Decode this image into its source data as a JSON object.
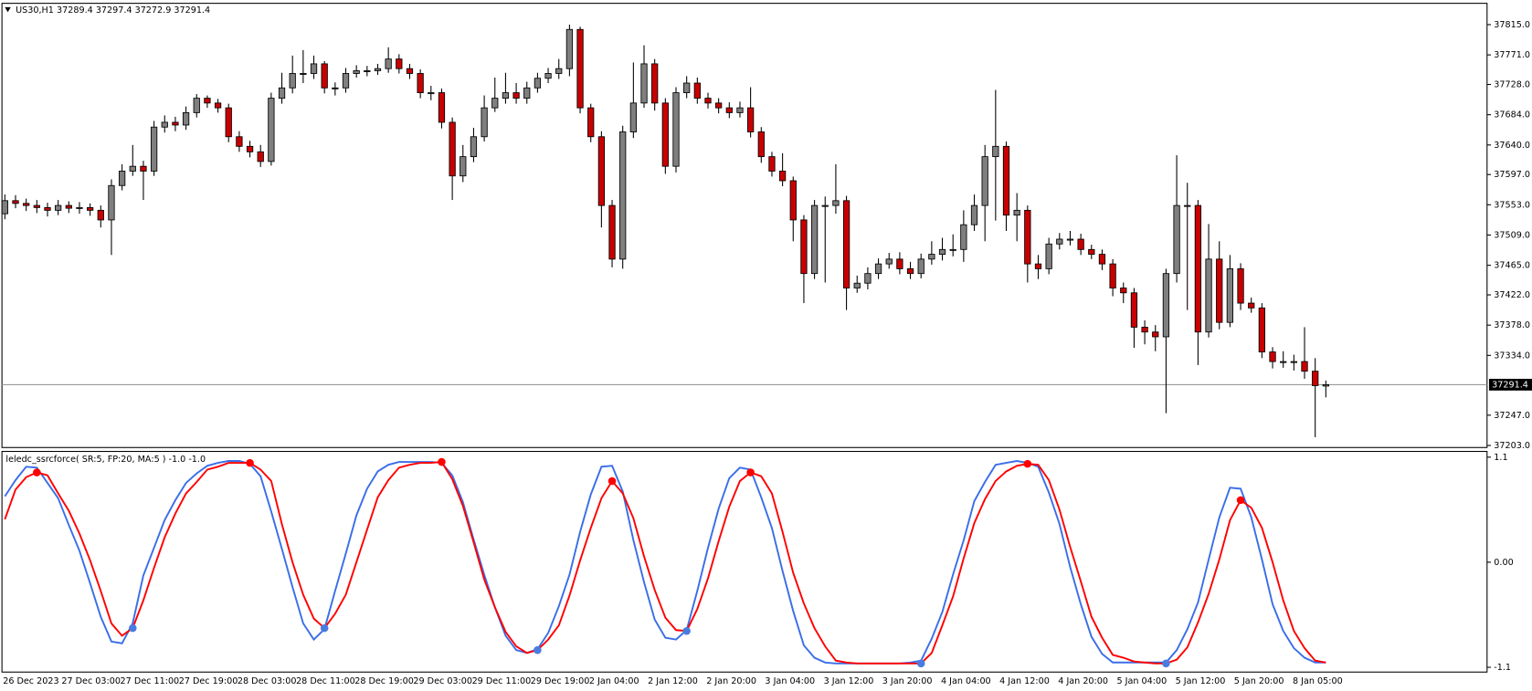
{
  "chart_data": [
    {
      "type": "candlestick",
      "title": "US30,H1",
      "readout": [
        37289.4,
        37297.4,
        37272.9,
        37291.4
      ],
      "x_labels": [
        "26 Dec 2023",
        "27 Dec 03:00",
        "27 Dec 11:00",
        "27 Dec 19:00",
        "28 Dec 03:00",
        "28 Dec 11:00",
        "28 Dec 19:00",
        "29 Dec 03:00",
        "29 Dec 11:00",
        "29 Dec 19:00",
        "2 Jan 04:00",
        "2 Jan 12:00",
        "2 Jan 20:00",
        "3 Jan 04:00",
        "3 Jan 12:00",
        "3 Jan 20:00",
        "4 Jan 04:00",
        "4 Jan 12:00",
        "4 Jan 20:00",
        "5 Jan 04:00",
        "5 Jan 12:00",
        "5 Jan 20:00",
        "8 Jan 05:00"
      ],
      "open": [
        37540,
        37559,
        37555,
        37552,
        37549,
        37545,
        37552,
        37548,
        37549,
        37545,
        37531,
        37581,
        37602,
        37609,
        37602,
        37666,
        37673,
        37669,
        37687,
        37708,
        37701,
        37694,
        37652,
        37638,
        37630,
        37616,
        37708,
        37723,
        37744,
        37744,
        37758,
        37723,
        37723,
        37744,
        37748,
        37748,
        37751,
        37765,
        37751,
        37744,
        37716,
        37716,
        37673,
        37595,
        37623,
        37652,
        37694,
        37708,
        37716,
        37708,
        37723,
        37737,
        37744,
        37751,
        37808,
        37694,
        37652,
        37552,
        37474,
        37659,
        37701,
        37758,
        37701,
        37609,
        37716,
        37730,
        37708,
        37701,
        37694,
        37687,
        37694,
        37659,
        37623,
        37602,
        37588,
        37531,
        37453,
        37552,
        37552,
        37559,
        37432,
        37439,
        37453,
        37467,
        37474,
        37460,
        37453,
        37474,
        37481,
        37488,
        37488,
        37524,
        37552,
        37623,
        37638,
        37538,
        37545,
        37467,
        37460,
        37496,
        37503,
        37503,
        37488,
        37481,
        37467,
        37432,
        37425,
        37375,
        37368,
        37361,
        37453,
        37552,
        37552,
        37368,
        37474,
        37382,
        37460,
        37410,
        37403,
        37339,
        37325,
        37325,
        37325,
        37311,
        37289.4
      ],
      "high": [
        37568,
        37567,
        37562,
        37560,
        37556,
        37560,
        37558,
        37557,
        37555,
        37552,
        37590,
        37612,
        37640,
        37617,
        37675,
        37683,
        37681,
        37696,
        37714,
        37712,
        37707,
        37700,
        37660,
        37646,
        37640,
        37716,
        37745,
        37770,
        37778,
        37770,
        37762,
        37731,
        37752,
        37756,
        37755,
        37758,
        37782,
        37772,
        37758,
        37750,
        37726,
        37722,
        37680,
        37640,
        37665,
        37712,
        37738,
        37745,
        37730,
        37732,
        37745,
        37752,
        37765,
        37815,
        37812,
        37700,
        37660,
        37560,
        37668,
        37760,
        37785,
        37765,
        37708,
        37724,
        37740,
        37738,
        37716,
        37708,
        37702,
        37703,
        37724,
        37666,
        37630,
        37628,
        37594,
        37538,
        37560,
        37565,
        37612,
        37566,
        37450,
        37462,
        37475,
        37483,
        37484,
        37470,
        37482,
        37500,
        37505,
        37510,
        37545,
        37568,
        37640,
        37720,
        37645,
        37570,
        37552,
        37480,
        37505,
        37512,
        37515,
        37511,
        37495,
        37488,
        37474,
        37440,
        37432,
        37385,
        37378,
        37460,
        37625,
        37585,
        37560,
        37525,
        37500,
        37480,
        37468,
        37418,
        37410,
        37346,
        37340,
        37335,
        37375,
        37330,
        37297.4
      ],
      "low": [
        37532,
        37548,
        37544,
        37541,
        37536,
        37538,
        37541,
        37540,
        37537,
        37520,
        37480,
        37574,
        37595,
        37560,
        37595,
        37658,
        37660,
        37662,
        37680,
        37694,
        37687,
        37644,
        37630,
        37622,
        37608,
        37610,
        37700,
        37715,
        37730,
        37736,
        37715,
        37712,
        37716,
        37738,
        37740,
        37742,
        37745,
        37744,
        37736,
        37708,
        37705,
        37664,
        37560,
        37586,
        37615,
        37645,
        37688,
        37700,
        37700,
        37700,
        37716,
        37730,
        37736,
        37740,
        37686,
        37644,
        37520,
        37462,
        37460,
        37650,
        37694,
        37690,
        37598,
        37600,
        37708,
        37700,
        37693,
        37686,
        37679,
        37680,
        37651,
        37614,
        37594,
        37580,
        37500,
        37410,
        37445,
        37440,
        37540,
        37400,
        37425,
        37430,
        37445,
        37460,
        37452,
        37445,
        37446,
        37466,
        37472,
        37478,
        37470,
        37515,
        37500,
        37530,
        37515,
        37500,
        37440,
        37445,
        37452,
        37488,
        37494,
        37480,
        37474,
        37458,
        37420,
        37410,
        37345,
        37350,
        37340,
        37250,
        37440,
        37400,
        37320,
        37360,
        37372,
        37375,
        37400,
        37396,
        37330,
        37315,
        37316,
        37312,
        37300,
        37215,
        37272.9
      ],
      "close": [
        37559,
        37555,
        37552,
        37549,
        37545,
        37552,
        37548,
        37549,
        37545,
        37531,
        37581,
        37602,
        37609,
        37602,
        37666,
        37673,
        37669,
        37687,
        37708,
        37701,
        37694,
        37652,
        37638,
        37630,
        37616,
        37708,
        37723,
        37744,
        37744,
        37758,
        37723,
        37723,
        37744,
        37748,
        37748,
        37751,
        37765,
        37751,
        37744,
        37716,
        37716,
        37673,
        37595,
        37623,
        37652,
        37694,
        37708,
        37716,
        37708,
        37723,
        37737,
        37744,
        37751,
        37808,
        37694,
        37652,
        37552,
        37474,
        37659,
        37701,
        37758,
        37701,
        37609,
        37716,
        37730,
        37708,
        37701,
        37694,
        37687,
        37694,
        37659,
        37623,
        37602,
        37588,
        37531,
        37453,
        37552,
        37552,
        37559,
        37432,
        37439,
        37453,
        37467,
        37474,
        37460,
        37453,
        37474,
        37481,
        37488,
        37488,
        37524,
        37552,
        37623,
        37638,
        37538,
        37545,
        37467,
        37460,
        37496,
        37503,
        37503,
        37488,
        37481,
        37467,
        37432,
        37425,
        37375,
        37368,
        37361,
        37453,
        37552,
        37552,
        37368,
        37474,
        37382,
        37460,
        37410,
        37403,
        37339,
        37325,
        37325,
        37325,
        37311,
        37290,
        37291.4
      ],
      "up_color": "#7f7f7f",
      "down_color": "#c80000",
      "ylim": [
        37200,
        37846
      ],
      "yticks": [
        {
          "value": 37815,
          "label": "37815.0"
        },
        {
          "value": 37771,
          "label": "37771.0"
        },
        {
          "value": 37728,
          "label": "37728.0"
        },
        {
          "value": 37684,
          "label": "37684.0"
        },
        {
          "value": 37640,
          "label": "37640.0"
        },
        {
          "value": 37597,
          "label": "37597.0"
        },
        {
          "value": 37553,
          "label": "37553.0"
        },
        {
          "value": 37509,
          "label": "37509.0"
        },
        {
          "value": 37465,
          "label": "37465.0"
        },
        {
          "value": 37422,
          "label": "37422.0"
        },
        {
          "value": 37378,
          "label": "37378.0"
        },
        {
          "value": 37334,
          "label": "37334.0"
        },
        {
          "value": 37247,
          "label": "37247.0"
        },
        {
          "value": 37203,
          "label": "37203.0"
        }
      ],
      "last_price_line": true
    },
    {
      "type": "line",
      "title": "leledc_ssrcforce( SR:5, FP:20, MA:5 ) -1.0 -1.0",
      "series": [
        {
          "color": "#3a6ee8",
          "values": [
            0.69,
            0.86,
            1.0,
            0.99,
            0.83,
            0.67,
            0.39,
            0.12,
            -0.22,
            -0.57,
            -0.83,
            -0.85,
            -0.64,
            -0.14,
            0.15,
            0.44,
            0.65,
            0.83,
            0.93,
            1.01,
            1.04,
            1.06,
            1.06,
            1.03,
            0.9,
            0.53,
            0.14,
            -0.26,
            -0.64,
            -0.81,
            -0.7,
            -0.3,
            0.09,
            0.49,
            0.77,
            0.95,
            1.02,
            1.05,
            1.05,
            1.05,
            1.05,
            1.04,
            0.91,
            0.63,
            0.24,
            -0.13,
            -0.47,
            -0.77,
            -0.92,
            -0.95,
            -0.91,
            -0.74,
            -0.46,
            -0.13,
            0.32,
            0.71,
            1.0,
            1.01,
            0.74,
            0.23,
            -0.21,
            -0.6,
            -0.79,
            -0.81,
            -0.71,
            -0.3,
            0.15,
            0.56,
            0.88,
            0.99,
            0.97,
            0.68,
            0.36,
            -0.09,
            -0.51,
            -0.87,
            -1.0,
            -1.05,
            -1.06,
            -1.06,
            -1.06,
            -1.06,
            -1.06,
            -1.06,
            -1.06,
            -1.05,
            -1.03,
            -0.8,
            -0.52,
            -0.13,
            0.23,
            0.64,
            0.84,
            1.02,
            1.04,
            1.06,
            1.04,
            1.0,
            0.73,
            0.4,
            -0.05,
            -0.44,
            -0.78,
            -0.96,
            -1.05,
            -1.05,
            -1.05,
            -1.05,
            -1.05,
            -1.05,
            -0.92,
            -0.7,
            -0.42,
            0.03,
            0.47,
            0.78,
            0.77,
            0.47,
            0.03,
            -0.44,
            -0.72,
            -0.9,
            -1.0,
            -1.05,
            -1.05
          ]
        },
        {
          "color": "#ff0000",
          "values": [
            0.45,
            0.76,
            0.89,
            0.94,
            0.91,
            0.72,
            0.54,
            0.3,
            0.02,
            -0.3,
            -0.64,
            -0.77,
            -0.69,
            -0.4,
            -0.06,
            0.26,
            0.51,
            0.72,
            0.84,
            0.97,
            1.0,
            1.04,
            1.04,
            1.04,
            0.97,
            0.85,
            0.4,
            0.0,
            -0.34,
            -0.59,
            -0.69,
            -0.54,
            -0.34,
            0.0,
            0.34,
            0.68,
            0.86,
            0.99,
            1.02,
            1.04,
            1.04,
            1.05,
            0.87,
            0.59,
            0.21,
            -0.18,
            -0.47,
            -0.73,
            -0.88,
            -0.95,
            -0.92,
            -0.81,
            -0.66,
            -0.35,
            0.02,
            0.36,
            0.67,
            0.85,
            0.72,
            0.46,
            0.06,
            -0.29,
            -0.58,
            -0.71,
            -0.72,
            -0.49,
            -0.17,
            0.22,
            0.58,
            0.85,
            0.94,
            0.9,
            0.72,
            0.32,
            -0.11,
            -0.43,
            -0.69,
            -0.88,
            -1.03,
            -1.05,
            -1.06,
            -1.06,
            -1.06,
            -1.06,
            -1.06,
            -1.06,
            -1.06,
            -0.95,
            -0.66,
            -0.36,
            0.04,
            0.41,
            0.66,
            0.85,
            0.95,
            1.01,
            1.03,
            1.02,
            0.86,
            0.55,
            0.16,
            -0.2,
            -0.57,
            -0.79,
            -0.97,
            -1.0,
            -1.04,
            -1.05,
            -1.06,
            -1.06,
            -1.02,
            -0.89,
            -0.63,
            -0.33,
            0.03,
            0.44,
            0.65,
            0.57,
            0.36,
            0.0,
            -0.4,
            -0.72,
            -0.9,
            -1.03,
            -1.05
          ]
        },
        {
          "type": "marker",
          "color": "#ff0000",
          "values": [
            null,
            null,
            null,
            0.94,
            null,
            null,
            null,
            null,
            null,
            null,
            null,
            null,
            null,
            null,
            null,
            null,
            null,
            null,
            null,
            null,
            null,
            null,
            null,
            1.04,
            null,
            null,
            null,
            null,
            null,
            null,
            null,
            null,
            null,
            null,
            null,
            null,
            null,
            null,
            null,
            null,
            null,
            1.05,
            null,
            null,
            null,
            null,
            null,
            null,
            null,
            null,
            null,
            null,
            null,
            null,
            null,
            null,
            null,
            0.85,
            null,
            null,
            null,
            null,
            null,
            null,
            null,
            null,
            null,
            null,
            null,
            null,
            0.94,
            null,
            null,
            null,
            null,
            null,
            null,
            null,
            null,
            null,
            null,
            null,
            null,
            null,
            null,
            null,
            null,
            null,
            null,
            null,
            null,
            null,
            null,
            null,
            null,
            null,
            1.03,
            null,
            null,
            null,
            null,
            null,
            null,
            null,
            null,
            null,
            null,
            null,
            null,
            null,
            null,
            null,
            null,
            null,
            null,
            null,
            0.65,
            null,
            null,
            null,
            null,
            null,
            null,
            null,
            null
          ]
        },
        {
          "type": "marker",
          "color": "#4a7be0",
          "values": [
            null,
            null,
            null,
            null,
            null,
            null,
            null,
            null,
            null,
            null,
            null,
            null,
            -0.69,
            null,
            null,
            null,
            null,
            null,
            null,
            null,
            null,
            null,
            null,
            null,
            null,
            null,
            null,
            null,
            null,
            null,
            -0.69,
            null,
            null,
            null,
            null,
            null,
            null,
            null,
            null,
            null,
            null,
            null,
            null,
            null,
            null,
            null,
            null,
            null,
            null,
            null,
            -0.92,
            null,
            null,
            null,
            null,
            null,
            null,
            null,
            null,
            null,
            null,
            null,
            null,
            null,
            -0.72,
            null,
            null,
            null,
            null,
            null,
            null,
            null,
            null,
            null,
            null,
            null,
            null,
            null,
            null,
            null,
            null,
            null,
            null,
            null,
            null,
            null,
            -1.06,
            null,
            null,
            null,
            null,
            null,
            null,
            null,
            null,
            null,
            null,
            null,
            null,
            null,
            null,
            null,
            null,
            null,
            null,
            null,
            null,
            null,
            null,
            -1.06,
            null,
            null,
            null,
            null,
            null,
            null,
            null,
            null,
            null,
            null,
            null,
            null,
            null,
            null,
            null
          ]
        }
      ],
      "ylim": [
        -1.15,
        1.16
      ],
      "yticks": [
        1.1,
        {
          "value": 0,
          "label": "0.00"
        },
        -1.1
      ]
    }
  ]
}
